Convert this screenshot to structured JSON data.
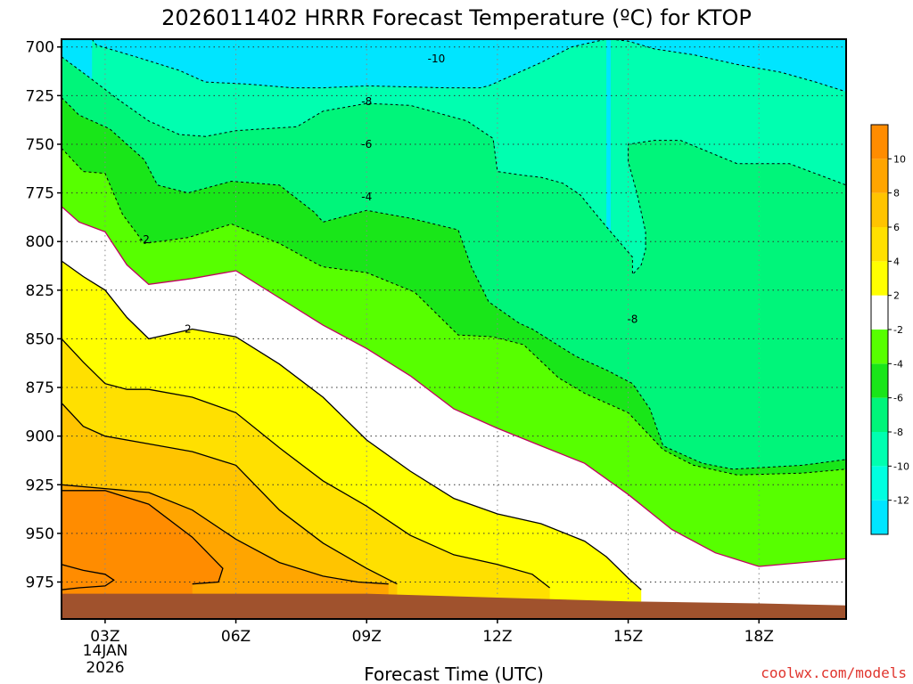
{
  "chart_data": {
    "type": "contour",
    "title": "2026011402 HRRR Forecast Temperature (ºC) for KTOP",
    "xlabel": "Forecast Time (UTC)",
    "ylabel": "",
    "x_ticks": [
      "03Z",
      "06Z",
      "09Z",
      "12Z",
      "15Z",
      "18Z"
    ],
    "x_hours": [
      3,
      6,
      9,
      12,
      15,
      18
    ],
    "x_range_hours": [
      2,
      20
    ],
    "date_label": [
      "14JAN",
      "2026"
    ],
    "y_ticks": [
      700,
      725,
      750,
      775,
      800,
      825,
      850,
      875,
      900,
      925,
      950,
      975
    ],
    "y_range_hpa": [
      696,
      994
    ],
    "colorbar": {
      "bounds": [
        -14,
        -12,
        -10,
        -8,
        -6,
        -4,
        -2,
        2,
        4,
        6,
        8,
        10,
        12
      ],
      "colors": [
        "#00e5ff",
        "#00ffe0",
        "#00ffb0",
        "#00f57a",
        "#19e619",
        "#57ff00",
        "#ffffff",
        "#ffff00",
        "#ffe000",
        "#ffc400",
        "#ffa500",
        "#ff8c00"
      ],
      "tick_labels": [
        "-12",
        "-10",
        "-8",
        "-6",
        "-4",
        "-2",
        "2",
        "4",
        "6",
        "8",
        "10"
      ]
    },
    "contour_labels": [
      {
        "text": "-10",
        "hour": 10.6,
        "hpa": 706
      },
      {
        "text": "-8",
        "hour": 9.0,
        "hpa": 728
      },
      {
        "text": "-6",
        "hour": 9.0,
        "hpa": 750
      },
      {
        "text": "-4",
        "hour": 9.0,
        "hpa": 777
      },
      {
        "text": "-2",
        "hour": 3.9,
        "hpa": 799
      },
      {
        "text": "2",
        "hour": 4.9,
        "hpa": 845
      },
      {
        "text": "-8",
        "hour": 15.1,
        "hpa": 840
      }
    ],
    "series": [
      {
        "name": "-10",
        "style": "dashed",
        "points": [
          [
            2.7,
            696
          ],
          [
            2.8,
            699
          ],
          [
            3.7,
            705
          ],
          [
            4.7,
            712
          ],
          [
            5.3,
            718
          ],
          [
            6.2,
            719
          ],
          [
            7.3,
            721
          ],
          [
            8.0,
            721
          ],
          [
            9.0,
            720
          ],
          [
            10.8,
            721
          ],
          [
            11.6,
            721
          ],
          [
            11.8,
            720
          ],
          [
            12.3,
            715
          ],
          [
            12.7,
            711
          ],
          [
            13.0,
            708
          ],
          [
            13.7,
            700
          ],
          [
            14.5,
            696
          ]
        ],
        "fill_below": "#00ffb0"
      },
      {
        "name": "-10b",
        "style": "dashed",
        "points": [
          [
            14.6,
            696
          ],
          [
            15.0,
            697
          ],
          [
            15.6,
            701
          ],
          [
            16.5,
            704
          ],
          [
            17.5,
            709
          ],
          [
            18.5,
            713
          ],
          [
            19.3,
            718
          ],
          [
            20.0,
            723
          ]
        ],
        "fill_below": "#00ffb0"
      },
      {
        "name": "-8",
        "style": "dashed",
        "points": [
          [
            2.0,
            705
          ],
          [
            2.6,
            715
          ],
          [
            3.3,
            727
          ],
          [
            4.0,
            738
          ],
          [
            4.7,
            745
          ],
          [
            5.3,
            746
          ],
          [
            6.0,
            743
          ],
          [
            7.4,
            741
          ],
          [
            8.0,
            733
          ],
          [
            8.5,
            731
          ],
          [
            9.0,
            729
          ],
          [
            10.0,
            730
          ],
          [
            11.3,
            738
          ],
          [
            11.9,
            747
          ],
          [
            12.0,
            764
          ],
          [
            12.6,
            766
          ],
          [
            13.0,
            767
          ],
          [
            13.5,
            770
          ],
          [
            13.9,
            776
          ],
          [
            14.3,
            787
          ],
          [
            14.6,
            795
          ],
          [
            15.1,
            808
          ],
          [
            15.1,
            817
          ],
          [
            15.3,
            812
          ],
          [
            15.4,
            804
          ],
          [
            15.4,
            795
          ],
          [
            15.2,
            775
          ],
          [
            15.0,
            759
          ],
          [
            15.0,
            750
          ],
          [
            15.6,
            748
          ],
          [
            16.2,
            748
          ],
          [
            17.5,
            760
          ],
          [
            18.7,
            760
          ],
          [
            20.0,
            771
          ]
        ],
        "fill_below": "#00f57a"
      },
      {
        "name": "-6",
        "style": "dashed",
        "points": [
          [
            2.0,
            726
          ],
          [
            2.4,
            735
          ],
          [
            3.1,
            742
          ],
          [
            3.9,
            758
          ],
          [
            4.2,
            771
          ],
          [
            4.9,
            775
          ],
          [
            5.9,
            769
          ],
          [
            7.0,
            771
          ],
          [
            7.8,
            785
          ],
          [
            8.0,
            790
          ],
          [
            9.0,
            784
          ],
          [
            10.0,
            788
          ],
          [
            11.1,
            794
          ],
          [
            11.4,
            813
          ],
          [
            11.8,
            831
          ],
          [
            12.5,
            842
          ],
          [
            12.8,
            845
          ],
          [
            13.8,
            859
          ],
          [
            14.5,
            866
          ],
          [
            15.1,
            873
          ],
          [
            15.5,
            886
          ],
          [
            15.8,
            905
          ],
          [
            16.7,
            914
          ],
          [
            17.4,
            917
          ],
          [
            19.0,
            915
          ],
          [
            20.0,
            912
          ]
        ],
        "fill_below": "#19e619"
      },
      {
        "name": "-4",
        "style": "dashed",
        "points": [
          [
            2.0,
            752
          ],
          [
            2.5,
            764
          ],
          [
            3.0,
            765
          ],
          [
            3.4,
            786
          ],
          [
            3.9,
            801
          ],
          [
            4.9,
            798
          ],
          [
            5.9,
            791
          ],
          [
            7.0,
            801
          ],
          [
            7.9,
            812
          ],
          [
            8.0,
            813
          ],
          [
            9.0,
            816
          ],
          [
            10.1,
            826
          ],
          [
            11.1,
            848
          ],
          [
            11.9,
            849
          ],
          [
            12.6,
            853
          ],
          [
            13.4,
            870
          ],
          [
            14.0,
            878
          ],
          [
            15.0,
            888
          ],
          [
            15.8,
            907
          ],
          [
            16.5,
            915
          ],
          [
            17.5,
            920
          ],
          [
            19.0,
            919
          ],
          [
            20.0,
            917
          ]
        ],
        "fill_below": "#57ff00"
      },
      {
        "name": "-2",
        "style": "solid",
        "color": "#c00060",
        "points": [
          [
            2.0,
            782
          ],
          [
            2.4,
            790
          ],
          [
            3.0,
            795
          ],
          [
            3.5,
            812
          ],
          [
            4.0,
            822
          ],
          [
            5.0,
            819
          ],
          [
            6.0,
            815
          ],
          [
            7.0,
            829
          ],
          [
            8.0,
            843
          ],
          [
            9.0,
            855
          ],
          [
            10.0,
            869
          ],
          [
            11.0,
            886
          ],
          [
            12.0,
            896
          ],
          [
            13.0,
            905
          ],
          [
            14.0,
            914
          ],
          [
            15.0,
            930
          ],
          [
            16.0,
            948
          ],
          [
            17.0,
            960
          ],
          [
            18.0,
            967
          ],
          [
            19.0,
            965
          ],
          [
            20.0,
            963
          ]
        ],
        "fill_below": "#ffffff"
      },
      {
        "name": "2",
        "style": "solid",
        "color": "#000000",
        "points": [
          [
            2.0,
            810
          ],
          [
            2.5,
            818
          ],
          [
            3.0,
            825
          ],
          [
            3.5,
            839
          ],
          [
            4.0,
            850
          ],
          [
            5.0,
            845
          ],
          [
            6.0,
            849
          ],
          [
            7.0,
            863
          ],
          [
            8.0,
            880
          ],
          [
            9.0,
            902
          ],
          [
            10.0,
            918
          ],
          [
            11.0,
            932
          ],
          [
            12.0,
            940
          ],
          [
            13.0,
            945
          ],
          [
            14.0,
            954
          ],
          [
            14.5,
            962
          ],
          [
            15.0,
            973
          ],
          [
            15.3,
            979
          ]
        ],
        "fill_below": "#ffff00"
      },
      {
        "name": "4",
        "style": "solid",
        "color": "#000000",
        "points": [
          [
            2.0,
            850
          ],
          [
            2.5,
            862
          ],
          [
            3.0,
            873
          ],
          [
            3.5,
            876
          ],
          [
            4.0,
            876
          ],
          [
            5.0,
            880
          ],
          [
            6.0,
            888
          ],
          [
            7.0,
            906
          ],
          [
            8.0,
            923
          ],
          [
            9.0,
            936
          ],
          [
            10.0,
            951
          ],
          [
            11.0,
            961
          ],
          [
            12.0,
            966
          ],
          [
            12.8,
            971
          ],
          [
            13.2,
            978
          ]
        ],
        "fill_below": "#ffe000"
      },
      {
        "name": "6",
        "style": "solid",
        "color": "#000000",
        "points": [
          [
            2.0,
            883
          ],
          [
            2.5,
            895
          ],
          [
            3.0,
            900
          ],
          [
            4.0,
            904
          ],
          [
            5.0,
            908
          ],
          [
            6.0,
            915
          ],
          [
            7.0,
            938
          ],
          [
            8.0,
            955
          ],
          [
            9.0,
            968
          ],
          [
            9.7,
            976
          ]
        ],
        "fill_below": "#ffc400"
      },
      {
        "name": "8",
        "style": "solid",
        "color": "#000000",
        "points": [
          [
            2.0,
            925
          ],
          [
            3.0,
            927
          ],
          [
            4.0,
            929
          ],
          [
            5.0,
            938
          ],
          [
            6.0,
            953
          ],
          [
            7.0,
            965
          ],
          [
            8.0,
            972
          ],
          [
            8.8,
            975
          ],
          [
            9.5,
            976
          ]
        ],
        "fill_below": "#ffa500"
      },
      {
        "name": "8b",
        "style": "solid",
        "color": "#000000",
        "points": [
          [
            2.0,
            928
          ],
          [
            3.0,
            928
          ],
          [
            4.0,
            935
          ],
          [
            5.0,
            952
          ],
          [
            5.7,
            968
          ],
          [
            5.6,
            975
          ],
          [
            5.0,
            976
          ]
        ],
        "fill_below": "#ff8c00"
      },
      {
        "name": "10",
        "style": "solid",
        "color": "#000000",
        "points": [
          [
            2.0,
            966
          ],
          [
            2.5,
            969
          ],
          [
            3.0,
            971
          ],
          [
            3.2,
            974
          ],
          [
            3.0,
            977
          ],
          [
            2.4,
            978
          ],
          [
            2.0,
            979
          ]
        ],
        "fill_below": "#ff8c00"
      }
    ],
    "terrain": {
      "color": "#a0522d",
      "surface_hpa": [
        [
          2.0,
          981
        ],
        [
          6.0,
          981
        ],
        [
          9.0,
          981
        ],
        [
          12.0,
          983
        ],
        [
          15.0,
          985
        ],
        [
          18.0,
          986
        ],
        [
          20.0,
          987
        ]
      ]
    }
  },
  "footer": {
    "credit": "coolwx.com/models",
    "credit_color": "#e0342d"
  }
}
